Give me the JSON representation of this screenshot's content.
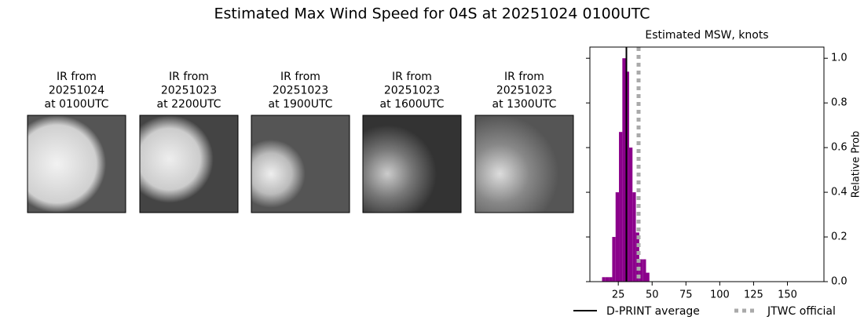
{
  "title": "Estimated Max Wind Speed for 04S at 20251024 0100UTC",
  "images": [
    {
      "lines": [
        "IR from",
        "20251024",
        "at 0100UTC"
      ]
    },
    {
      "lines": [
        "IR from",
        "20251023",
        "at 2200UTC"
      ]
    },
    {
      "lines": [
        "IR from",
        "20251023",
        "at 1900UTC"
      ]
    },
    {
      "lines": [
        "IR from",
        "20251023",
        "at 1600UTC"
      ]
    },
    {
      "lines": [
        "IR from",
        "20251023",
        "at 1300UTC"
      ]
    }
  ],
  "chart_data": {
    "type": "histogram",
    "title": "Estimated MSW, knots",
    "y_label": "Relative Prob",
    "bins": [
      13,
      15.5,
      18,
      20.5,
      23,
      25.5,
      28,
      30.5,
      33,
      35.5,
      38,
      40.5,
      43,
      45.5,
      48
    ],
    "values": [
      0.02,
      0.02,
      0.02,
      0.2,
      0.4,
      0.67,
      1.0,
      0.94,
      0.6,
      0.4,
      0.22,
      0.1,
      0.1,
      0.04
    ],
    "color": "#8b008b",
    "xlim": [
      4,
      177
    ],
    "xticks": [
      25,
      50,
      75,
      100,
      125,
      150
    ],
    "ylim": [
      0,
      1.05
    ],
    "yticks": [
      {
        "value": 0,
        "label": "0.0"
      },
      {
        "value": 0.2,
        "label": "0.2"
      },
      {
        "value": 0.4,
        "label": "0.4"
      },
      {
        "value": 0.6,
        "label": "0.6"
      },
      {
        "value": 0.8,
        "label": "0.8"
      },
      {
        "value": 1.0,
        "label": "1.0"
      }
    ],
    "lines": [
      {
        "name": "D-PRINT average",
        "value": 31,
        "color": "#000000",
        "style": "solid"
      },
      {
        "name": "JTWC official",
        "value": 40,
        "color": "#aaaaaa",
        "style": "dotted"
      }
    ]
  }
}
